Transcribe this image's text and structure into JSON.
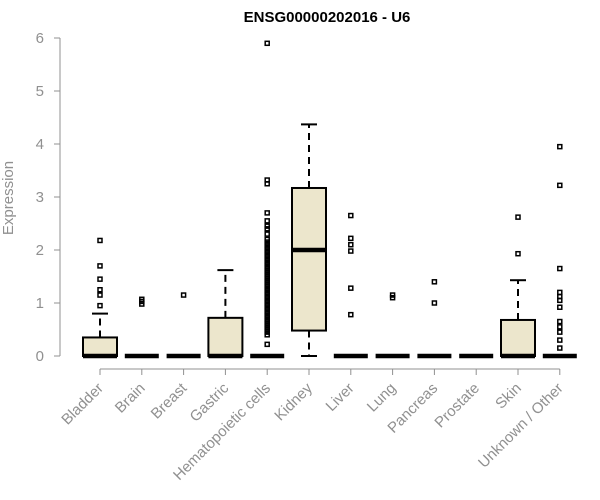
{
  "chart_data": {
    "type": "boxplot",
    "title": "ENSG00000202016 - U6",
    "ylabel": "Expression",
    "xlabel": "",
    "ylim": [
      0,
      6
    ],
    "yticks": [
      0,
      1,
      2,
      3,
      4,
      5,
      6
    ],
    "grid": false,
    "box_color": "#ece6cc",
    "categories": [
      "Bladder",
      "Brain",
      "Breast",
      "Gastric",
      "Hematopoietic cells",
      "Kidney",
      "Liver",
      "Lung",
      "Pancreas",
      "Prostate",
      "Skin",
      "Unknown / Other"
    ],
    "boxes": [
      {
        "min": 0,
        "q1": 0,
        "median": 0,
        "q3": 0.35,
        "max": 0.8,
        "outliers": [
          0.95,
          1.15,
          1.25,
          1.45,
          1.7,
          2.18
        ]
      },
      {
        "min": 0,
        "q1": 0,
        "median": 0,
        "q3": 0,
        "max": 0,
        "outliers": [
          0.98,
          1.03,
          1.07
        ]
      },
      {
        "min": 0,
        "q1": 0,
        "median": 0,
        "q3": 0,
        "max": 0,
        "outliers": [
          1.15
        ]
      },
      {
        "min": 0,
        "q1": 0,
        "median": 0,
        "q3": 0.72,
        "max": 1.62,
        "outliers": []
      },
      {
        "min": 0,
        "q1": 0,
        "median": 0,
        "q3": 0,
        "max": 0,
        "outliers": [
          0.22,
          0.4,
          0.45,
          0.5,
          0.55,
          0.6,
          0.65,
          0.7,
          0.75,
          0.8,
          0.85,
          0.9,
          0.95,
          1.0,
          1.05,
          1.1,
          1.15,
          1.2,
          1.25,
          1.3,
          1.35,
          1.4,
          1.45,
          1.5,
          1.55,
          1.6,
          1.65,
          1.7,
          1.75,
          1.8,
          1.85,
          1.9,
          1.95,
          2.0,
          2.05,
          2.1,
          2.15,
          2.2,
          2.3,
          2.4,
          2.45,
          2.55,
          2.7,
          3.25,
          3.32,
          5.9
        ]
      },
      {
        "min": 0,
        "q1": 0.48,
        "median": 2.0,
        "q3": 3.17,
        "max": 4.37,
        "outliers": []
      },
      {
        "min": 0,
        "q1": 0,
        "median": 0,
        "q3": 0,
        "max": 0,
        "outliers": [
          0.78,
          1.28,
          1.98,
          2.1,
          2.22,
          2.65
        ]
      },
      {
        "min": 0,
        "q1": 0,
        "median": 0,
        "q3": 0,
        "max": 0,
        "outliers": [
          1.1,
          1.15
        ]
      },
      {
        "min": 0,
        "q1": 0,
        "median": 0,
        "q3": 0,
        "max": 0,
        "outliers": [
          1.0,
          1.4
        ]
      },
      {
        "min": 0,
        "q1": 0,
        "median": 0,
        "q3": 0,
        "max": 0,
        "outliers": []
      },
      {
        "min": 0,
        "q1": 0,
        "median": 0,
        "q3": 0.68,
        "max": 1.43,
        "outliers": [
          1.93,
          2.62
        ]
      },
      {
        "min": 0,
        "q1": 0,
        "median": 0,
        "q3": 0,
        "max": 0,
        "outliers": [
          0.15,
          0.3,
          0.45,
          0.55,
          0.65,
          0.92,
          1.05,
          1.12,
          1.2,
          1.65,
          3.22,
          3.95
        ]
      }
    ]
  }
}
